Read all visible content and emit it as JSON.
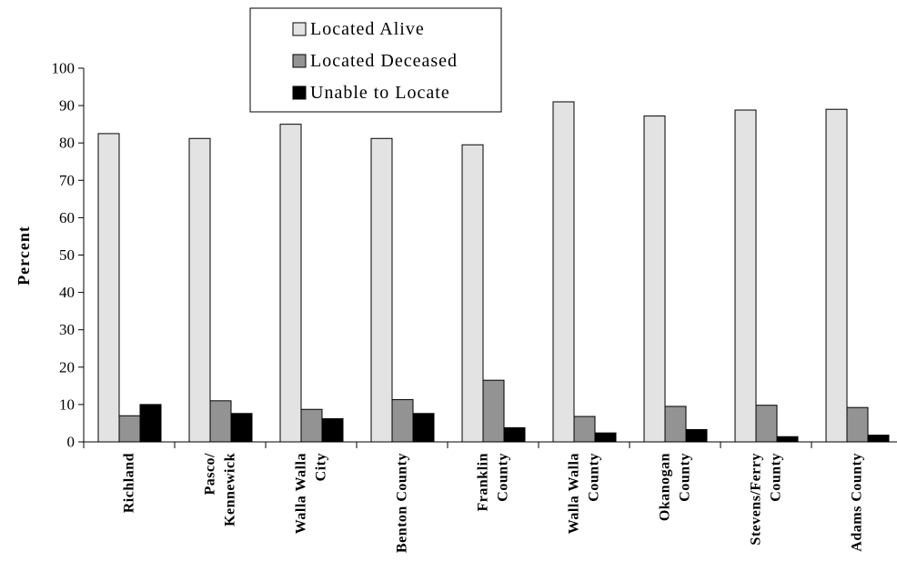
{
  "chart_data": {
    "type": "bar",
    "ylabel": "Percent",
    "xlabel": "",
    "ylim": [
      0,
      100
    ],
    "yticks": [
      0,
      10,
      20,
      30,
      40,
      50,
      60,
      70,
      80,
      90,
      100
    ],
    "grid": false,
    "legend_position": "top-center",
    "categories": [
      [
        "Richland"
      ],
      [
        "Pasco/",
        "Kennewick"
      ],
      [
        "Walla Walla",
        "City"
      ],
      [
        "Benton County"
      ],
      [
        "Franklin",
        "County"
      ],
      [
        "Walla Walla",
        "County"
      ],
      [
        "Okanogan",
        "County"
      ],
      [
        "Stevens/Ferry",
        "County"
      ],
      [
        "Adams County"
      ]
    ],
    "series": [
      {
        "name": "Located Alive",
        "color": "#e3e3e3",
        "values": [
          82.5,
          81.2,
          85.0,
          81.2,
          79.5,
          91.0,
          87.2,
          88.8,
          89.0
        ]
      },
      {
        "name": "Located Deceased",
        "color": "#939393",
        "values": [
          7.0,
          11.0,
          8.7,
          11.3,
          16.5,
          6.8,
          9.5,
          9.8,
          9.2
        ]
      },
      {
        "name": "Unable to Locate",
        "color": "#000000",
        "values": [
          10.0,
          7.6,
          6.2,
          7.6,
          3.8,
          2.4,
          3.3,
          1.4,
          1.8
        ]
      }
    ]
  }
}
